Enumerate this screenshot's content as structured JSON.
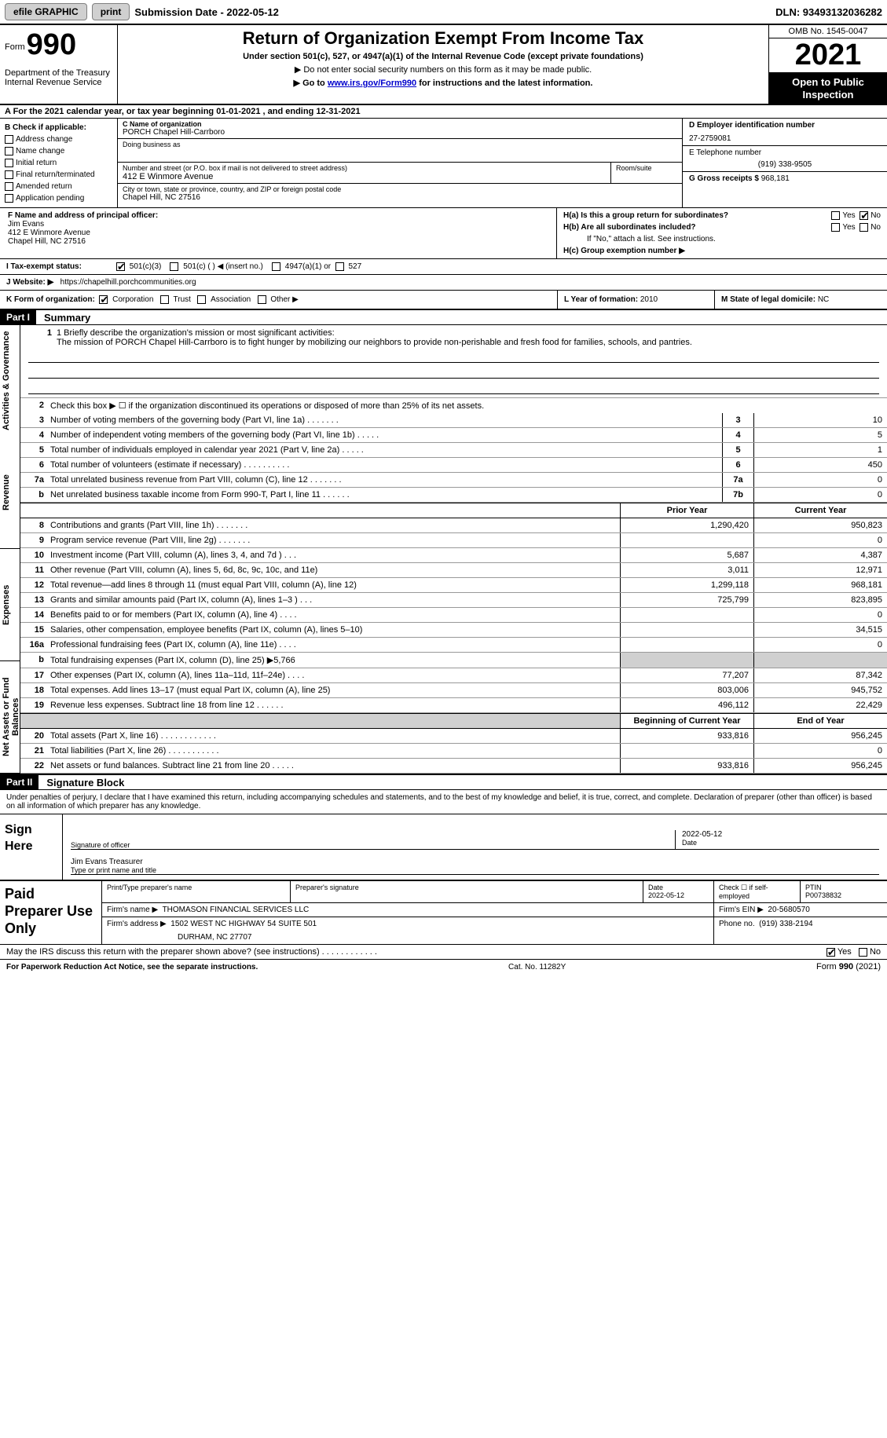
{
  "topbar": {
    "efile": "efile GRAPHIC",
    "print": "print",
    "submission": "Submission Date - 2022-05-12",
    "dln": "DLN: 93493132036282"
  },
  "header": {
    "form_prefix": "Form",
    "form_number": "990",
    "title": "Return of Organization Exempt From Income Tax",
    "subtitle1": "Under section 501(c), 527, or 4947(a)(1) of the Internal Revenue Code (except private foundations)",
    "subtitle2": "▶ Do not enter social security numbers on this form as it may be made public.",
    "subtitle3_prefix": "▶ Go to ",
    "subtitle3_link": "www.irs.gov/Form990",
    "subtitle3_suffix": " for instructions and the latest information.",
    "dept": "Department of the Treasury\nInternal Revenue Service",
    "omb": "OMB No. 1545-0047",
    "year": "2021",
    "inspection": "Open to Public Inspection"
  },
  "line_a": "A For the 2021 calendar year, or tax year beginning 01-01-2021   , and ending 12-31-2021",
  "section_b": {
    "label": "B Check if applicable:",
    "items": [
      "Address change",
      "Name change",
      "Initial return",
      "Final return/terminated",
      "Amended return",
      "Application pending"
    ]
  },
  "section_c": {
    "name_label": "C Name of organization",
    "name": "PORCH Chapel Hill-Carrboro",
    "dba_label": "Doing business as",
    "dba": "",
    "street_label": "Number and street (or P.O. box if mail is not delivered to street address)",
    "room_label": "Room/suite",
    "street": "412 E Winmore Avenue",
    "city_label": "City or town, state or province, country, and ZIP or foreign postal code",
    "city": "Chapel Hill, NC  27516"
  },
  "section_d": {
    "ein_label": "D Employer identification number",
    "ein": "27-2759081",
    "phone_label": "E Telephone number",
    "phone": "(919) 338-9505",
    "gross_label": "G Gross receipts $",
    "gross": "968,181"
  },
  "section_f": {
    "label": "F Name and address of principal officer:",
    "name": "Jim Evans",
    "street": "412 E Winmore Avenue",
    "city": "Chapel Hill, NC  27516"
  },
  "section_h": {
    "ha": "H(a)  Is this a group return for subordinates?",
    "hb": "H(b)  Are all subordinates included?",
    "hb_note": "If \"No,\" attach a list. See instructions.",
    "hc_label": "H(c)  Group exemption number ▶",
    "yes": "Yes",
    "no": "No"
  },
  "line_i": {
    "label": "I  Tax-exempt status:",
    "opt1": "501(c)(3)",
    "opt2": "501(c) (  ) ◀ (insert no.)",
    "opt3": "4947(a)(1) or",
    "opt4": "527"
  },
  "line_j": {
    "label": "J  Website: ▶",
    "url": "https://chapelhill.porchcommunities.org"
  },
  "line_k": {
    "label": "K Form of organization:",
    "corp": "Corporation",
    "trust": "Trust",
    "assoc": "Association",
    "other": "Other ▶",
    "l_label": "L Year of formation:",
    "l_val": "2010",
    "m_label": "M State of legal domicile:",
    "m_val": "NC"
  },
  "part1": {
    "header": "Part I",
    "title": "Summary",
    "line1_label": "1  Briefly describe the organization's mission or most significant activities:",
    "line1_text": "The mission of PORCH Chapel Hill-Carrboro is to fight hunger by mobilizing our neighbors to provide non-perishable and fresh food for families, schools, and pantries.",
    "line2": "Check this box ▶ ☐  if the organization discontinued its operations or disposed of more than 25% of its net assets.",
    "tabs": [
      "Activities & Governance",
      "Revenue",
      "Expenses",
      "Net Assets or Fund Balances"
    ],
    "col_prior": "Prior Year",
    "col_current": "Current Year",
    "col_begin": "Beginning of Current Year",
    "col_end": "End of Year",
    "rows_gov": [
      {
        "n": "3",
        "d": "Number of voting members of the governing body (Part VI, line 1a)   .    .    .    .    .    .    .",
        "box": "3",
        "v": "10"
      },
      {
        "n": "4",
        "d": "Number of independent voting members of the governing body (Part VI, line 1b)   .    .    .    .    .",
        "box": "4",
        "v": "5"
      },
      {
        "n": "5",
        "d": "Total number of individuals employed in calendar year 2021 (Part V, line 2a)   .    .    .    .    .",
        "box": "5",
        "v": "1"
      },
      {
        "n": "6",
        "d": "Total number of volunteers (estimate if necessary)    .    .    .    .    .    .    .    .    .    .",
        "box": "6",
        "v": "450"
      },
      {
        "n": "7a",
        "d": "Total unrelated business revenue from Part VIII, column (C), line 12   .    .    .    .    .    .    .",
        "box": "7a",
        "v": "0"
      },
      {
        "n": "b",
        "d": "Net unrelated business taxable income from Form 990-T, Part I, line 11   .    .    .    .    .    .",
        "box": "7b",
        "v": "0"
      }
    ],
    "rows_rev": [
      {
        "n": "8",
        "d": "Contributions and grants (Part VIII, line 1h)   .    .    .    .    .    .    .",
        "p": "1,290,420",
        "c": "950,823"
      },
      {
        "n": "9",
        "d": "Program service revenue (Part VIII, line 2g)   .    .    .    .    .    .    .",
        "p": "",
        "c": "0"
      },
      {
        "n": "10",
        "d": "Investment income (Part VIII, column (A), lines 3, 4, and 7d )    .    .    .",
        "p": "5,687",
        "c": "4,387"
      },
      {
        "n": "11",
        "d": "Other revenue (Part VIII, column (A), lines 5, 6d, 8c, 9c, 10c, and 11e)",
        "p": "3,011",
        "c": "12,971"
      },
      {
        "n": "12",
        "d": "Total revenue—add lines 8 through 11 (must equal Part VIII, column (A), line 12)",
        "p": "1,299,118",
        "c": "968,181"
      }
    ],
    "rows_exp": [
      {
        "n": "13",
        "d": "Grants and similar amounts paid (Part IX, column (A), lines 1–3 )   .    .    .",
        "p": "725,799",
        "c": "823,895"
      },
      {
        "n": "14",
        "d": "Benefits paid to or for members (Part IX, column (A), line 4)   .    .    .    .",
        "p": "",
        "c": "0"
      },
      {
        "n": "15",
        "d": "Salaries, other compensation, employee benefits (Part IX, column (A), lines 5–10)",
        "p": "",
        "c": "34,515"
      },
      {
        "n": "16a",
        "d": "Professional fundraising fees (Part IX, column (A), line 11e)   .    .    .    .",
        "p": "",
        "c": "0"
      },
      {
        "n": "b",
        "d": "Total fundraising expenses (Part IX, column (D), line 25) ▶5,766",
        "p": "grey",
        "c": "grey"
      },
      {
        "n": "17",
        "d": "Other expenses (Part IX, column (A), lines 11a–11d, 11f–24e)   .    .    .    .",
        "p": "77,207",
        "c": "87,342"
      },
      {
        "n": "18",
        "d": "Total expenses. Add lines 13–17 (must equal Part IX, column (A), line 25)",
        "p": "803,006",
        "c": "945,752"
      },
      {
        "n": "19",
        "d": "Revenue less expenses. Subtract line 18 from line 12   .    .    .    .    .    .",
        "p": "496,112",
        "c": "22,429"
      }
    ],
    "rows_net": [
      {
        "n": "20",
        "d": "Total assets (Part X, line 16)   .    .    .    .    .    .    .    .    .    .    .    .",
        "p": "933,816",
        "c": "956,245"
      },
      {
        "n": "21",
        "d": "Total liabilities (Part X, line 26)   .    .    .    .    .    .    .    .    .    .    .",
        "p": "",
        "c": "0"
      },
      {
        "n": "22",
        "d": "Net assets or fund balances. Subtract line 21 from line 20   .    .    .    .    .",
        "p": "933,816",
        "c": "956,245"
      }
    ]
  },
  "part2": {
    "header": "Part II",
    "title": "Signature Block",
    "declaration": "Under penalties of perjury, I declare that I have examined this return, including accompanying schedules and statements, and to the best of my knowledge and belief, it is true, correct, and complete. Declaration of preparer (other than officer) is based on all information of which preparer has any knowledge.",
    "sign_here": "Sign Here",
    "sig_officer_label": "Signature of officer",
    "sig_date": "2022-05-12",
    "date_label": "Date",
    "officer_name": "Jim Evans  Treasurer",
    "officer_name_label": "Type or print name and title"
  },
  "preparer": {
    "label": "Paid Preparer Use Only",
    "col1": "Print/Type preparer's name",
    "col2": "Preparer's signature",
    "col3_label": "Date",
    "col3": "2022-05-12",
    "col4_label": "Check ☐ if self-employed",
    "col5_label": "PTIN",
    "col5": "P00738832",
    "firm_name_label": "Firm's name   ▶",
    "firm_name": "THOMASON FINANCIAL SERVICES LLC",
    "firm_ein_label": "Firm's EIN ▶",
    "firm_ein": "20-5680570",
    "firm_addr_label": "Firm's address ▶",
    "firm_addr": "1502 WEST NC HIGHWAY 54 SUITE 501",
    "firm_addr2": "DURHAM, NC  27707",
    "firm_phone_label": "Phone no.",
    "firm_phone": "(919) 338-2194"
  },
  "discuss": {
    "q": "May the IRS discuss this return with the preparer shown above? (see instructions)   .    .    .    .    .    .    .    .    .    .    .    .",
    "yes": "Yes",
    "no": "No"
  },
  "footer": {
    "left": "For Paperwork Reduction Act Notice, see the separate instructions.",
    "mid": "Cat. No. 11282Y",
    "right": "Form 990 (2021)"
  }
}
